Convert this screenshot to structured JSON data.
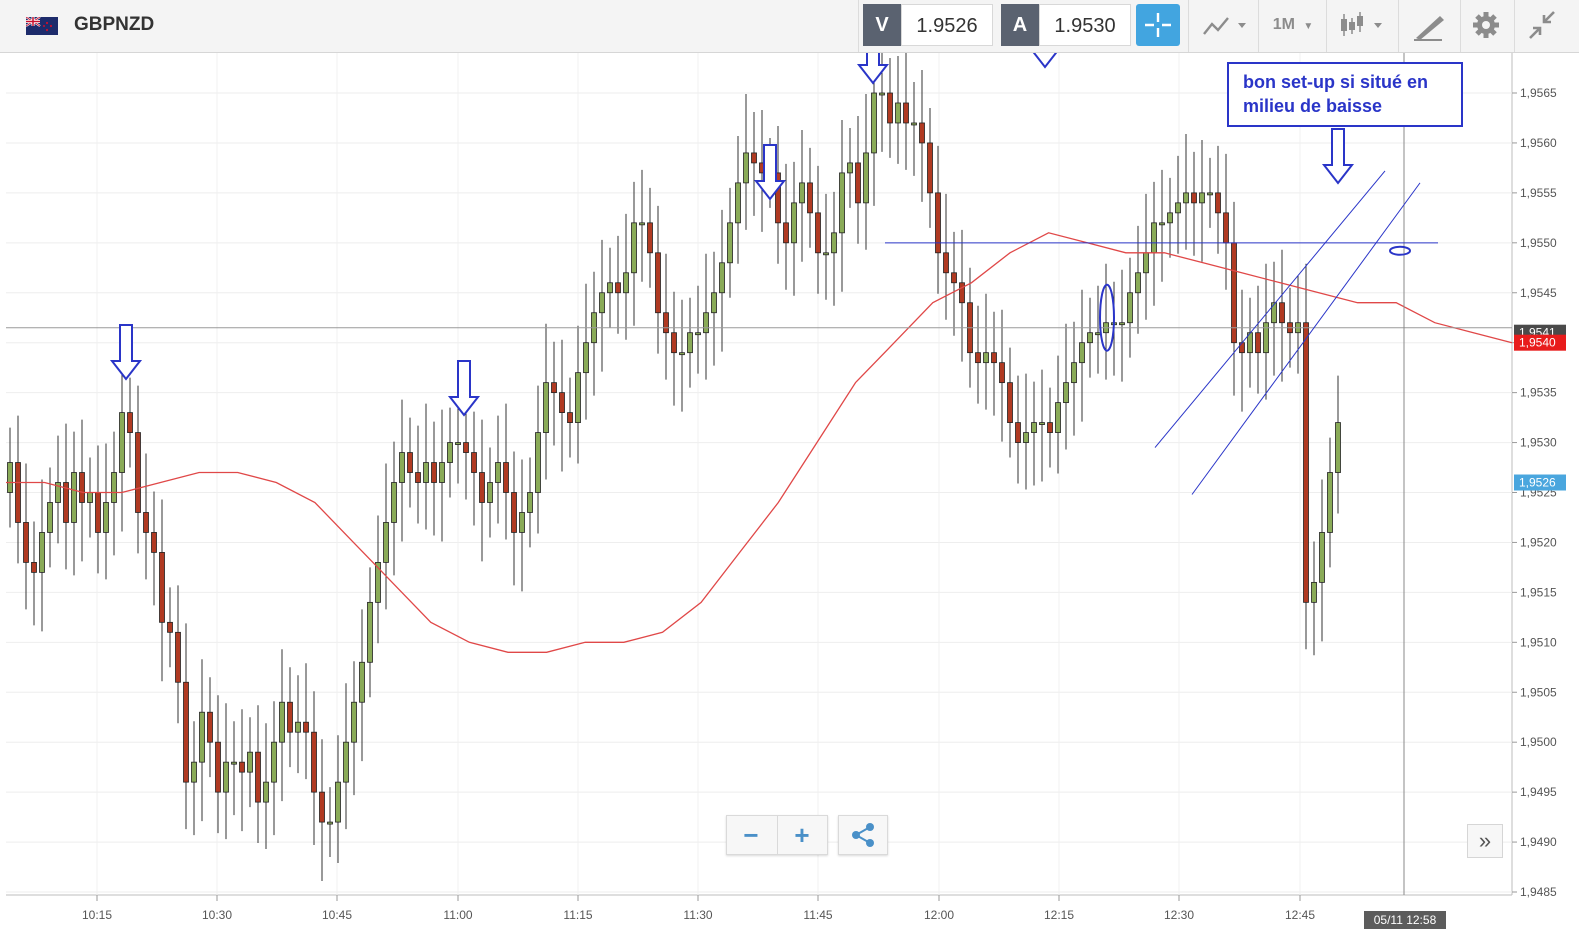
{
  "toolbar": {
    "symbol": "GBPNZD",
    "sell_label": "V",
    "sell_price": "1.9526",
    "buy_label": "A",
    "buy_price": "1.9530",
    "timeframe": "1M",
    "icons": [
      "flag-icon",
      "crosshair-icon",
      "chart-type-icon",
      "candles-icon",
      "draw-icon",
      "gear-icon",
      "collapse-icon"
    ]
  },
  "controls": {
    "zoom_out": "−",
    "zoom_in": "+",
    "share_icon": "share-icon",
    "expand": "»"
  },
  "chart_data": {
    "type": "candlestick",
    "symbol": "GBPNZD",
    "ylim": [
      1.9485,
      1.957
    ],
    "x_ticks": [
      "10:15",
      "10:30",
      "10:45",
      "11:00",
      "11:15",
      "11:30",
      "11:45",
      "12:00",
      "12:15",
      "12:30",
      "12:45"
    ],
    "y_ticks": [
      "1,9565",
      "1,9560",
      "1,9555",
      "1,9550",
      "1,9545",
      "1,9540",
      "1,9535",
      "1,9530",
      "1,9525",
      "1,9520",
      "1,9515",
      "1,9510",
      "1,9505",
      "1,9500",
      "1,9495",
      "1,9490",
      "1,9485"
    ],
    "price_labels": [
      {
        "text": "1,9541",
        "value": 1.9541,
        "color": "#4a4a4a"
      },
      {
        "text": "1,9540",
        "value": 1.954,
        "color": "#e81c1c"
      },
      {
        "text": "1,9526",
        "value": 1.9526,
        "color": "#4aa6de"
      }
    ],
    "crosshair_label": "05/11 12:58",
    "annotation": {
      "line1": "bon set-up si situé en",
      "line2": "milieu de baisse"
    },
    "candles_close": [
      1.9528,
      1.9522,
      1.9518,
      1.9517,
      1.9521,
      1.9524,
      1.9526,
      1.9522,
      1.9527,
      1.9524,
      1.9525,
      1.9521,
      1.9524,
      1.9527,
      1.9533,
      1.9531,
      1.9523,
      1.9521,
      1.9519,
      1.9512,
      1.9511,
      1.9506,
      1.9496,
      1.9498,
      1.9503,
      1.95,
      1.9495,
      1.9498,
      1.9498,
      1.9497,
      1.9499,
      1.9494,
      1.9496,
      1.95,
      1.9504,
      1.9501,
      1.9502,
      1.9501,
      1.9495,
      1.9492,
      1.9492,
      1.9496,
      1.95,
      1.9504,
      1.9508,
      1.9514,
      1.9518,
      1.9522,
      1.9526,
      1.9529,
      1.9527,
      1.9526,
      1.9528,
      1.9526,
      1.9528,
      1.953,
      1.953,
      1.9529,
      1.9527,
      1.9524,
      1.9526,
      1.9528,
      1.9525,
      1.9521,
      1.9523,
      1.9525,
      1.9531,
      1.9536,
      1.9535,
      1.9533,
      1.9532,
      1.9537,
      1.954,
      1.9543,
      1.9545,
      1.9546,
      1.9545,
      1.9547,
      1.9552,
      1.9552,
      1.9549,
      1.9543,
      1.9541,
      1.9539,
      1.9539,
      1.9541,
      1.9541,
      1.9543,
      1.9545,
      1.9548,
      1.9552,
      1.9556,
      1.9559,
      1.9558,
      1.9557,
      1.9557,
      1.9552,
      1.955,
      1.9554,
      1.9556,
      1.9553,
      1.9549,
      1.9549,
      1.9551,
      1.9557,
      1.9558,
      1.9554,
      1.9559,
      1.9565,
      1.9565,
      1.9562,
      1.9564,
      1.9562,
      1.9562,
      1.956,
      1.9555,
      1.9549,
      1.9547,
      1.9546,
      1.9544,
      1.9539,
      1.9538,
      1.9539,
      1.9538,
      1.9536,
      1.9532,
      1.953,
      1.9531,
      1.9532,
      1.9532,
      1.9531,
      1.9534,
      1.9536,
      1.9538,
      1.954,
      1.9541,
      1.9541,
      1.9542,
      1.9542,
      1.9542,
      1.9545,
      1.9547,
      1.9549,
      1.9552,
      1.9552,
      1.9553,
      1.9554,
      1.9555,
      1.9554,
      1.9555,
      1.9555,
      1.9553,
      1.955,
      1.954,
      1.9539,
      1.9541,
      1.9539,
      1.9542,
      1.9544,
      1.9542,
      1.9541,
      1.9542,
      1.9514,
      1.9516,
      1.9521,
      1.9527,
      1.9532
    ],
    "series": [
      {
        "name": "",
        "color": "#e04848",
        "values": [
          1.9526,
          1.9526,
          1.9525,
          1.9525,
          1.9526,
          1.9527,
          1.9527,
          1.9526,
          1.9524,
          1.952,
          1.9516,
          1.9512,
          1.951,
          1.9509,
          1.9509,
          1.951,
          1.951,
          1.9511,
          1.9514,
          1.9519,
          1.9524,
          1.953,
          1.9536,
          1.954,
          1.9544,
          1.9546,
          1.9549,
          1.9551,
          1.955,
          1.9549,
          1.9549,
          1.9548,
          1.9547,
          1.9546,
          1.9545,
          1.9544,
          1.9544,
          1.9542,
          1.9541,
          1.954
        ]
      }
    ]
  }
}
